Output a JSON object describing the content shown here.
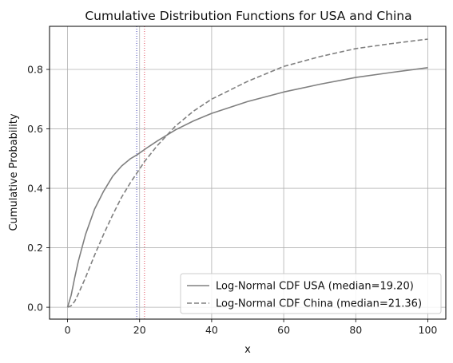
{
  "chart_data": {
    "type": "line",
    "title": "Cumulative Distribution Functions for USA and China",
    "xlabel": "x",
    "ylabel": "Cumulative Probability",
    "xlim": [
      -5,
      105
    ],
    "ylim": [
      -0.04,
      0.945
    ],
    "x_ticks": [
      0,
      20,
      40,
      60,
      80,
      100
    ],
    "y_ticks": [
      0.0,
      0.2,
      0.4,
      0.6,
      0.8
    ],
    "x_tick_labels": [
      "0",
      "20",
      "40",
      "60",
      "80",
      "100"
    ],
    "y_tick_labels": [
      "0.0",
      "0.2",
      "0.4",
      "0.6",
      "0.8"
    ],
    "grid": true,
    "legend_position": "lower-right",
    "series": [
      {
        "name": "Log-Normal CDF USA (median=19.20)",
        "color": "#808080",
        "style": "solid",
        "x": [
          0,
          1,
          2,
          3,
          5,
          7.5,
          10,
          12.5,
          15,
          17.5,
          19.2,
          22.5,
          25,
          30,
          35,
          40,
          50,
          60,
          70,
          80,
          90,
          100
        ],
        "y": [
          0.0,
          0.04,
          0.1,
          0.155,
          0.245,
          0.33,
          0.39,
          0.44,
          0.475,
          0.5,
          0.512,
          0.54,
          0.56,
          0.597,
          0.627,
          0.652,
          0.692,
          0.724,
          0.75,
          0.773,
          0.79,
          0.806
        ]
      },
      {
        "name": "Log-Normal CDF China (median=21.36)",
        "color": "#808080",
        "style": "dashed",
        "x": [
          0,
          1,
          2,
          3,
          5,
          7.5,
          10,
          12.5,
          15,
          17.5,
          20,
          21.36,
          25,
          30,
          35,
          40,
          50,
          60,
          70,
          80,
          90,
          100
        ],
        "y": [
          0.0,
          0.005,
          0.02,
          0.045,
          0.1,
          0.175,
          0.245,
          0.31,
          0.37,
          0.42,
          0.465,
          0.49,
          0.545,
          0.61,
          0.66,
          0.7,
          0.76,
          0.81,
          0.843,
          0.87,
          0.887,
          0.902
        ]
      }
    ],
    "vertical_lines": [
      {
        "x": 19.2,
        "color": "#3b3bb3",
        "style": "dotted"
      },
      {
        "x": 21.36,
        "color": "#e04a5a",
        "style": "dotted"
      }
    ]
  }
}
